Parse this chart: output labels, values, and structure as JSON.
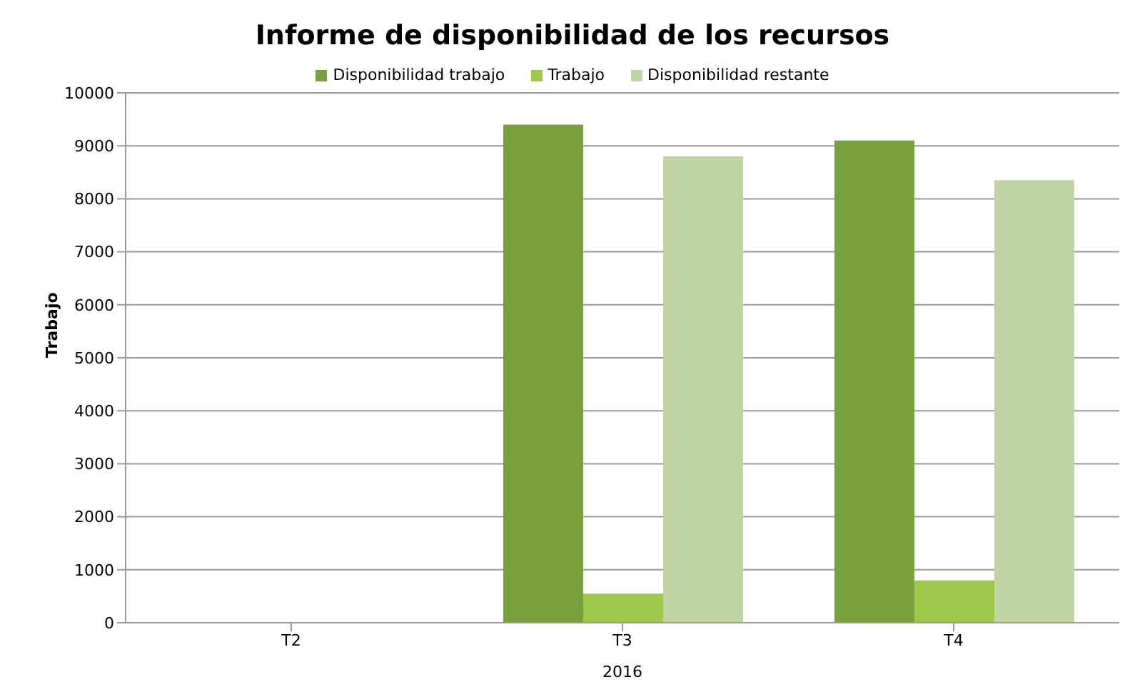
{
  "chart_data": {
    "type": "bar",
    "title": "Informe de disponibilidad de los recursos",
    "xlabel": "2016",
    "ylabel": "Trabajo",
    "categories": [
      "T2",
      "T3",
      "T4"
    ],
    "series": [
      {
        "name": "Disponibilidad trabajo",
        "color": "#78a03c",
        "values": [
          null,
          9400,
          9100
        ]
      },
      {
        "name": "Trabajo",
        "color": "#9cc84c",
        "values": [
          null,
          550,
          800
        ]
      },
      {
        "name": "Disponibilidad restante",
        "color": "#bfd4a2",
        "values": [
          null,
          8800,
          8350
        ]
      }
    ],
    "ylim": [
      0,
      10000
    ],
    "yticks": [
      0,
      1000,
      2000,
      3000,
      4000,
      5000,
      6000,
      7000,
      8000,
      9000,
      10000
    ],
    "grid": "y",
    "legend": "top"
  }
}
